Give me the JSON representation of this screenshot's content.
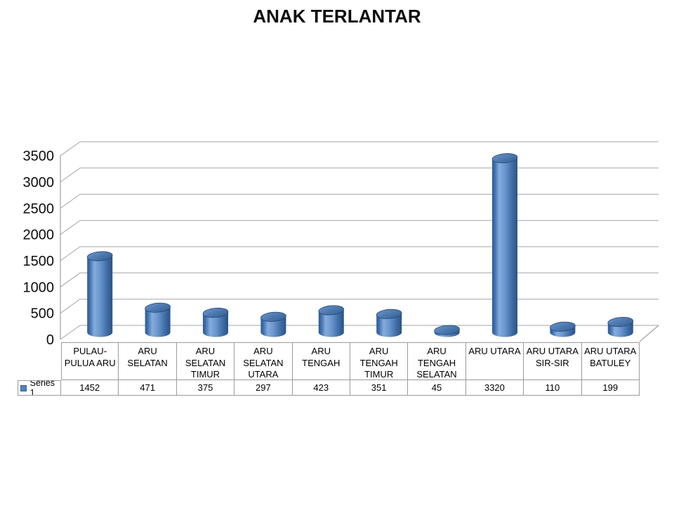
{
  "title": "ANAK TERLANTAR",
  "legend": {
    "label": "Series 1",
    "key_color": "#4F81BD"
  },
  "y_axis": {
    "tick_labels": [
      "0",
      "500",
      "1000",
      "1500",
      "2000",
      "2500",
      "3000",
      "3500"
    ]
  },
  "table": {
    "column_labels_display": [
      "PULAU-\nPULUA ARU",
      "ARU\nSELATAN",
      "ARU\nSELATAN\nTIMUR",
      "ARU\nSELATAN\nUTARA",
      "ARU\nTENGAH",
      "ARU\nTENGAH\nTIMUR",
      "ARU\nTENGAH\nSELATAN",
      "ARU UTARA",
      "ARU UTARA\nSIR-SIR",
      "ARU UTARA\nBATULEY"
    ],
    "values_display": [
      "1452",
      "471",
      "375",
      "297",
      "423",
      "351",
      "45",
      "3320",
      "110",
      "199"
    ]
  },
  "chart_data": {
    "type": "bar",
    "subtype": "3d-cylinder",
    "title": "ANAK TERLANTAR",
    "categories": [
      "PULAU-PULUA ARU",
      "ARU SELATAN",
      "ARU SELATAN TIMUR",
      "ARU SELATAN UTARA",
      "ARU TENGAH",
      "ARU TENGAH TIMUR",
      "ARU TENGAH SELATAN",
      "ARU UTARA",
      "ARU UTARA SIR-SIR",
      "ARU UTARA BATULEY"
    ],
    "series": [
      {
        "name": "Series 1",
        "values": [
          1452,
          471,
          375,
          297,
          423,
          351,
          45,
          3320,
          110,
          199
        ]
      }
    ],
    "ylim": [
      0,
      3500
    ],
    "ytick_step": 500,
    "grid": true,
    "legend_position": "data-table-left",
    "bar_color": "#4F81BD"
  },
  "colors": {
    "bar": "#4F81BD",
    "grid_line": "#a6a6a6",
    "axis_line": "#8c8c8c",
    "table_border": "#9b9b9b",
    "text": "#000000",
    "background": "#ffffff"
  }
}
